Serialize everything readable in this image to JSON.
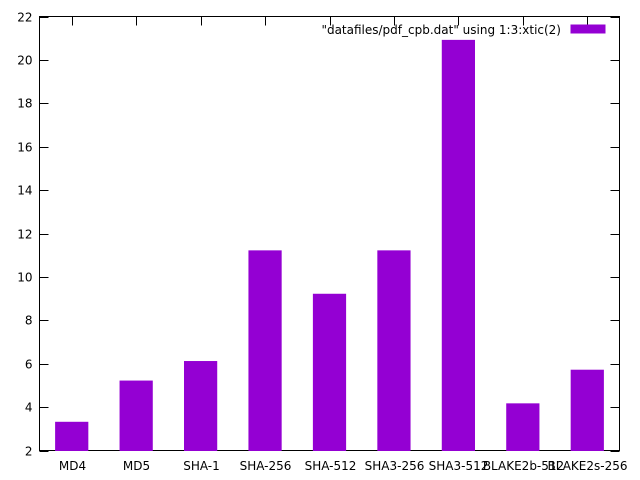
{
  "chart_data": {
    "type": "bar",
    "categories": [
      "MD4",
      "MD5",
      "SHA-1",
      "SHA-256",
      "SHA-512",
      "SHA3-256",
      "SHA3-512",
      "BLAKE2b-512",
      "BLAKE2s-256"
    ],
    "series": [
      {
        "name": "\"datafiles/pdf_cpb.dat\" using 1:3:xtic(2)",
        "values": [
          3.3,
          5.2,
          6.1,
          11.2,
          9.2,
          11.2,
          20.9,
          4.15,
          5.7
        ]
      }
    ],
    "ylim": [
      2,
      22
    ],
    "yticks": [
      2,
      4,
      6,
      8,
      10,
      12,
      14,
      16,
      18,
      20,
      22
    ],
    "grid": false,
    "legend_position": "top-right",
    "bar_color": "#9400d3"
  }
}
